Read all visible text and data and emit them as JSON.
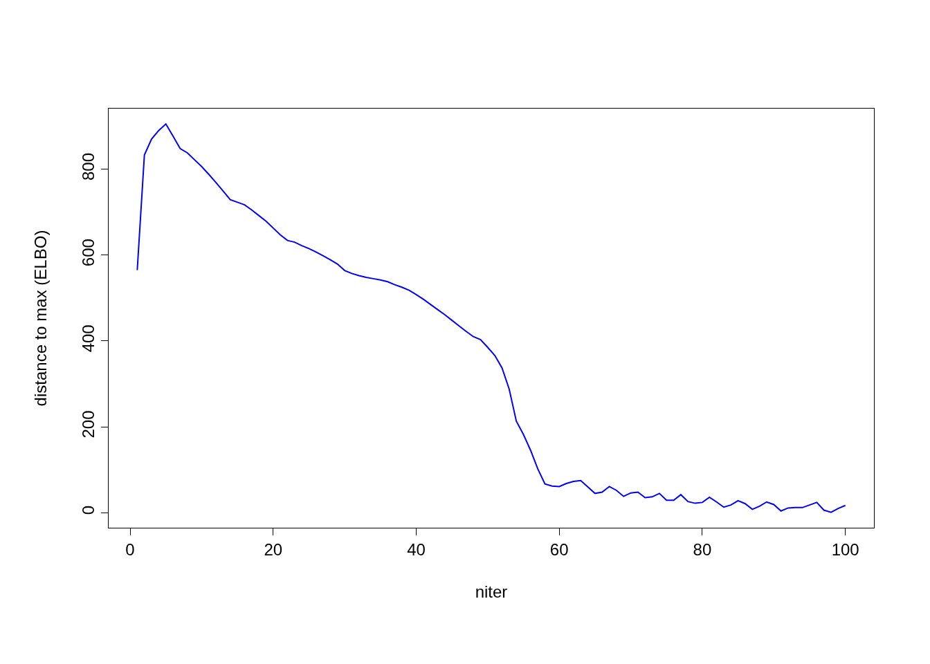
{
  "chart_data": {
    "type": "line",
    "xlabel": "niter",
    "ylabel": "distance to max (ELBO)",
    "x": [
      1,
      2,
      3,
      4,
      5,
      6,
      7,
      8,
      9,
      10,
      11,
      12,
      13,
      14,
      15,
      16,
      17,
      18,
      19,
      20,
      21,
      22,
      23,
      24,
      25,
      26,
      27,
      28,
      29,
      30,
      31,
      32,
      33,
      34,
      35,
      36,
      37,
      38,
      39,
      40,
      41,
      42,
      43,
      44,
      45,
      46,
      47,
      48,
      49,
      50,
      51,
      52,
      53,
      54,
      55,
      56,
      57,
      58,
      59,
      60,
      61,
      62,
      63,
      64,
      65,
      66,
      67,
      68,
      69,
      70,
      71,
      72,
      73,
      74,
      75,
      76,
      77,
      78,
      79,
      80,
      81,
      82,
      83,
      84,
      85,
      86,
      87,
      88,
      89,
      90,
      91,
      92,
      93,
      94,
      95,
      96,
      97,
      98,
      99,
      100
    ],
    "series": [
      {
        "color": "#0000ff",
        "values": [
          565,
          833,
          870,
          890,
          905,
          877,
          848,
          838,
          822,
          806,
          788,
          769,
          749,
          729,
          723,
          717,
          705,
          692,
          679,
          663,
          647,
          634,
          630,
          622,
          615,
          607,
          598,
          589,
          579,
          564,
          557,
          552,
          548,
          545,
          542,
          538,
          531,
          525,
          518,
          508,
          497,
          485,
          473,
          461,
          448,
          435,
          422,
          410,
          403,
          385,
          366,
          337,
          288,
          213,
          182,
          145,
          102,
          67,
          62,
          61,
          68,
          73,
          75,
          60,
          45,
          48,
          61,
          52,
          38,
          46,
          48,
          35,
          37,
          45,
          29,
          29,
          42,
          26,
          22,
          24,
          36,
          25,
          13,
          18,
          28,
          21,
          8,
          15,
          25,
          19,
          4,
          11,
          12,
          12,
          18,
          24,
          6,
          1,
          10,
          17
        ]
      }
    ],
    "xlim": [
      -3,
      104
    ],
    "xticks": [
      0,
      20,
      40,
      60,
      80,
      100
    ],
    "ylim": [
      -35,
      941
    ],
    "yticks": [
      0,
      200,
      400,
      600,
      800
    ],
    "marker": "none",
    "line_style": "solid"
  }
}
